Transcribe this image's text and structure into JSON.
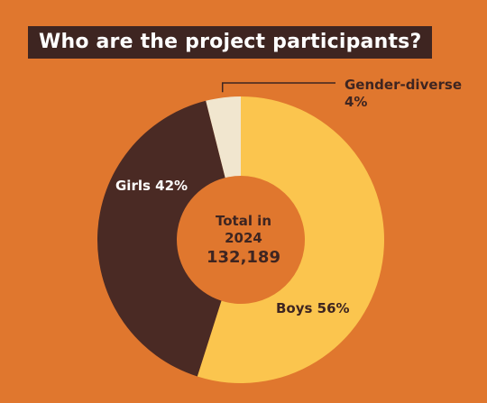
{
  "title": "Who are the project participants?",
  "colors": {
    "background": "#E0772E",
    "title_bg": "#3E2521",
    "boys": "#FBC54E",
    "girls": "#4A2A24",
    "gender_diverse": "#F1E6CF"
  },
  "center": {
    "line1": "Total in",
    "line2": "2024",
    "total": "132,189"
  },
  "chart_data": {
    "type": "pie",
    "title": "Who are the project participants?",
    "total": 132189,
    "year": 2024,
    "slices": [
      {
        "key": "boys",
        "label": "Boys 56%",
        "value": 56
      },
      {
        "key": "girls",
        "label": "Girls 42%",
        "value": 42
      },
      {
        "key": "gender_diverse",
        "label_line1": "Gender-diverse",
        "label_line2": "4%",
        "value": 4
      }
    ]
  }
}
